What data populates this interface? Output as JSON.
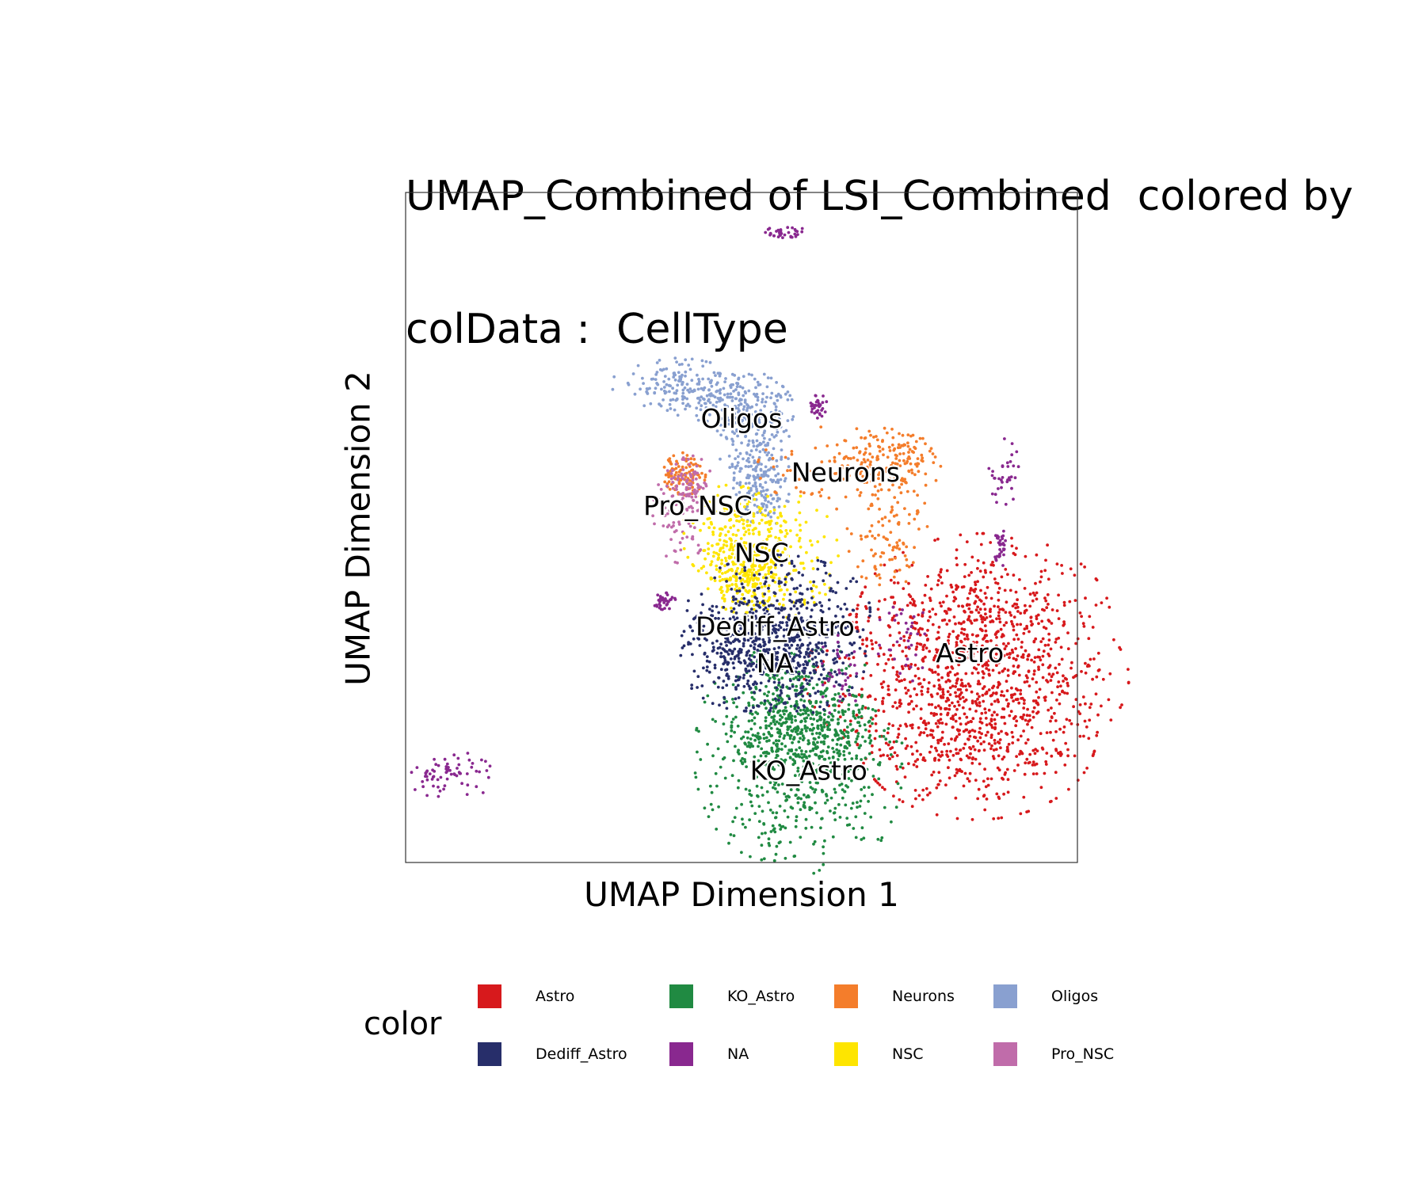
{
  "chart_data": {
    "type": "scatter",
    "title_lines": [
      "UMAP_Combined of LSI_Combined  colored by",
      "colData :  CellType"
    ],
    "xlabel": "UMAP Dimension 1",
    "ylabel": "UMAP Dimension 2",
    "xlim": [
      0,
      100
    ],
    "ylim": [
      0,
      100
    ],
    "grid": false,
    "legend_title": "color",
    "legend_position": "bottom",
    "categories": [
      {
        "name": "Astro",
        "color": "#d7191c"
      },
      {
        "name": "KO_Astro",
        "color": "#208a42"
      },
      {
        "name": "Neurons",
        "color": "#f47d2b"
      },
      {
        "name": "Oligos",
        "color": "#89a0d0"
      },
      {
        "name": "Dediff_Astro",
        "color": "#272e6a"
      },
      {
        "name": "NA",
        "color": "#89288f"
      },
      {
        "name": "NSC",
        "color": "#fee500"
      },
      {
        "name": "Pro_NSC",
        "color": "#c06caa"
      }
    ],
    "cluster_labels": [
      {
        "text": "Oligos",
        "x": 50,
        "y": 66
      },
      {
        "text": "Neurons",
        "x": 65.5,
        "y": 58
      },
      {
        "text": "Pro_NSC",
        "x": 43.5,
        "y": 53
      },
      {
        "text": "NSC",
        "x": 53,
        "y": 46
      },
      {
        "text": "Dediff_Astro",
        "x": 55,
        "y": 35
      },
      {
        "text": "NA",
        "x": 55,
        "y": 29.5
      },
      {
        "text": "Astro",
        "x": 84,
        "y": 31
      },
      {
        "text": "KO_Astro",
        "x": 60,
        "y": 13.5
      }
    ],
    "clusters": [
      {
        "category": "Astro",
        "n": 1400,
        "blobs": [
          {
            "x": 86.0,
            "y": 36.5,
            "rx": 9.0,
            "ry": 6.0
          },
          {
            "x": 83.5,
            "y": 27.5,
            "rx": 11.5,
            "ry": 6.5
          },
          {
            "x": 85.0,
            "y": 19.0,
            "rx": 8.5,
            "ry": 6.0
          }
        ]
      },
      {
        "category": "KO_Astro",
        "n": 950,
        "blobs": [
          {
            "x": 54.5,
            "y": 16.0,
            "rx": 5.5,
            "ry": 7.5
          },
          {
            "x": 62.5,
            "y": 15.0,
            "rx": 5.5,
            "ry": 8.0
          },
          {
            "x": 59.0,
            "y": 20.0,
            "rx": 5.0,
            "ry": 4.0
          }
        ]
      },
      {
        "category": "Oligos",
        "n": 600,
        "blobs": [
          {
            "x": 40.0,
            "y": 71.5,
            "rx": 4.5,
            "ry": 1.8
          },
          {
            "x": 46.5,
            "y": 70.0,
            "rx": 4.5,
            "ry": 2.0
          },
          {
            "x": 51.5,
            "y": 67.5,
            "rx": 3.0,
            "ry": 2.5
          },
          {
            "x": 52.0,
            "y": 61.5,
            "rx": 2.5,
            "ry": 4.0
          },
          {
            "x": 53.0,
            "y": 56.0,
            "rx": 2.0,
            "ry": 3.0
          }
        ]
      },
      {
        "category": "Neurons",
        "n": 420,
        "blobs": [
          {
            "x": 66.0,
            "y": 59.0,
            "rx": 6.5,
            "ry": 3.0
          },
          {
            "x": 71.5,
            "y": 60.5,
            "rx": 3.5,
            "ry": 2.0
          },
          {
            "x": 41.5,
            "y": 58.0,
            "rx": 1.5,
            "ry": 1.5
          },
          {
            "x": 72.0,
            "y": 49.0,
            "rx": 3.0,
            "ry": 4.0
          }
        ]
      },
      {
        "category": "Pro_NSC",
        "n": 160,
        "blobs": [
          {
            "x": 41.0,
            "y": 52.0,
            "rx": 2.0,
            "ry": 3.5
          },
          {
            "x": 42.5,
            "y": 56.5,
            "rx": 1.5,
            "ry": 2.0
          }
        ]
      },
      {
        "category": "NSC",
        "n": 520,
        "blobs": [
          {
            "x": 48.5,
            "y": 49.0,
            "rx": 3.5,
            "ry": 3.5
          },
          {
            "x": 56.0,
            "y": 46.0,
            "rx": 4.0,
            "ry": 4.5
          },
          {
            "x": 50.0,
            "y": 42.5,
            "rx": 2.5,
            "ry": 2.5
          }
        ]
      },
      {
        "category": "Dediff_Astro",
        "n": 800,
        "blobs": [
          {
            "x": 55.5,
            "y": 37.5,
            "rx": 6.5,
            "ry": 4.0
          },
          {
            "x": 51.0,
            "y": 31.0,
            "rx": 5.0,
            "ry": 4.0
          },
          {
            "x": 58.0,
            "y": 30.5,
            "rx": 5.0,
            "ry": 4.0
          }
        ]
      },
      {
        "category": "NA",
        "n": 300,
        "blobs": [
          {
            "x": 4.5,
            "y": 13.0,
            "rx": 2.0,
            "ry": 1.5
          },
          {
            "x": 8.5,
            "y": 13.5,
            "rx": 2.5,
            "ry": 1.8
          },
          {
            "x": 89.0,
            "y": 58.0,
            "rx": 1.2,
            "ry": 2.5
          },
          {
            "x": 61.5,
            "y": 68.0,
            "rx": 0.6,
            "ry": 0.9
          },
          {
            "x": 38.5,
            "y": 39.0,
            "rx": 0.8,
            "ry": 0.6
          },
          {
            "x": 64.5,
            "y": 28.0,
            "rx": 1.5,
            "ry": 3.0
          },
          {
            "x": 56.5,
            "y": 94.0,
            "rx": 1.5,
            "ry": 0.5
          },
          {
            "x": 74.0,
            "y": 33.0,
            "rx": 2.0,
            "ry": 3.0
          },
          {
            "x": 88.5,
            "y": 47.0,
            "rx": 0.4,
            "ry": 1.5
          }
        ]
      }
    ]
  }
}
